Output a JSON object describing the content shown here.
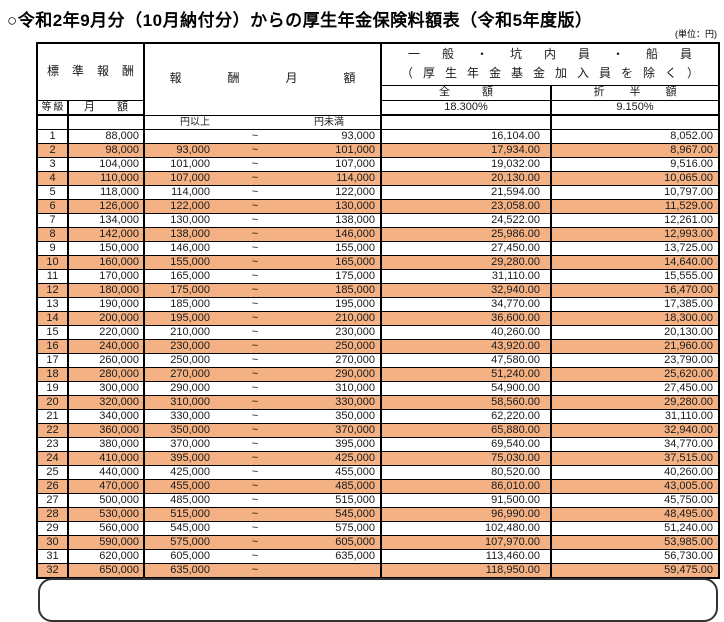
{
  "title": "○令和2年9月分（10月納付分）からの厚生年金保険料額表（令和5年度版）",
  "unit_note": "(単位：円)",
  "colors": {
    "highlight": "#F4B183",
    "border": "#000000"
  },
  "table": {
    "headers": {
      "standard_remuneration": "標準報酬",
      "grade": "等級",
      "monthly_amount": "月額",
      "remuneration_monthly": "報酬月額",
      "general_line1": "一般・坑内員・船員",
      "general_line2": "（厚生年金基金加入員を除く）",
      "full_amount": "全額",
      "half_amount": "折半額",
      "full_rate": "18.300%",
      "half_rate": "9.150%",
      "range_from": "円以上",
      "range_to": "円未満"
    },
    "range_separator": "~",
    "rows": [
      {
        "grade": "1",
        "monthly": "88,000",
        "lower": "",
        "upper": "93,000",
        "full": "16,104.00",
        "half": "8,052.00"
      },
      {
        "grade": "2",
        "monthly": "98,000",
        "lower": "93,000",
        "upper": "101,000",
        "full": "17,934.00",
        "half": "8,967.00"
      },
      {
        "grade": "3",
        "monthly": "104,000",
        "lower": "101,000",
        "upper": "107,000",
        "full": "19,032.00",
        "half": "9,516.00"
      },
      {
        "grade": "4",
        "monthly": "110,000",
        "lower": "107,000",
        "upper": "114,000",
        "full": "20,130.00",
        "half": "10,065.00"
      },
      {
        "grade": "5",
        "monthly": "118,000",
        "lower": "114,000",
        "upper": "122,000",
        "full": "21,594.00",
        "half": "10,797.00"
      },
      {
        "grade": "6",
        "monthly": "126,000",
        "lower": "122,000",
        "upper": "130,000",
        "full": "23,058.00",
        "half": "11,529.00"
      },
      {
        "grade": "7",
        "monthly": "134,000",
        "lower": "130,000",
        "upper": "138,000",
        "full": "24,522.00",
        "half": "12,261.00"
      },
      {
        "grade": "8",
        "monthly": "142,000",
        "lower": "138,000",
        "upper": "146,000",
        "full": "25,986.00",
        "half": "12,993.00"
      },
      {
        "grade": "9",
        "monthly": "150,000",
        "lower": "146,000",
        "upper": "155,000",
        "full": "27,450.00",
        "half": "13,725.00"
      },
      {
        "grade": "10",
        "monthly": "160,000",
        "lower": "155,000",
        "upper": "165,000",
        "full": "29,280.00",
        "half": "14,640.00"
      },
      {
        "grade": "11",
        "monthly": "170,000",
        "lower": "165,000",
        "upper": "175,000",
        "full": "31,110.00",
        "half": "15,555.00"
      },
      {
        "grade": "12",
        "monthly": "180,000",
        "lower": "175,000",
        "upper": "185,000",
        "full": "32,940.00",
        "half": "16,470.00"
      },
      {
        "grade": "13",
        "monthly": "190,000",
        "lower": "185,000",
        "upper": "195,000",
        "full": "34,770.00",
        "half": "17,385.00"
      },
      {
        "grade": "14",
        "monthly": "200,000",
        "lower": "195,000",
        "upper": "210,000",
        "full": "36,600.00",
        "half": "18,300.00"
      },
      {
        "grade": "15",
        "monthly": "220,000",
        "lower": "210,000",
        "upper": "230,000",
        "full": "40,260.00",
        "half": "20,130.00"
      },
      {
        "grade": "16",
        "monthly": "240,000",
        "lower": "230,000",
        "upper": "250,000",
        "full": "43,920.00",
        "half": "21,960.00"
      },
      {
        "grade": "17",
        "monthly": "260,000",
        "lower": "250,000",
        "upper": "270,000",
        "full": "47,580.00",
        "half": "23,790.00"
      },
      {
        "grade": "18",
        "monthly": "280,000",
        "lower": "270,000",
        "upper": "290,000",
        "full": "51,240.00",
        "half": "25,620.00"
      },
      {
        "grade": "19",
        "monthly": "300,000",
        "lower": "290,000",
        "upper": "310,000",
        "full": "54,900.00",
        "half": "27,450.00"
      },
      {
        "grade": "20",
        "monthly": "320,000",
        "lower": "310,000",
        "upper": "330,000",
        "full": "58,560.00",
        "half": "29,280.00"
      },
      {
        "grade": "21",
        "monthly": "340,000",
        "lower": "330,000",
        "upper": "350,000",
        "full": "62,220.00",
        "half": "31,110.00"
      },
      {
        "grade": "22",
        "monthly": "360,000",
        "lower": "350,000",
        "upper": "370,000",
        "full": "65,880.00",
        "half": "32,940.00"
      },
      {
        "grade": "23",
        "monthly": "380,000",
        "lower": "370,000",
        "upper": "395,000",
        "full": "69,540.00",
        "half": "34,770.00"
      },
      {
        "grade": "24",
        "monthly": "410,000",
        "lower": "395,000",
        "upper": "425,000",
        "full": "75,030.00",
        "half": "37,515.00"
      },
      {
        "grade": "25",
        "monthly": "440,000",
        "lower": "425,000",
        "upper": "455,000",
        "full": "80,520.00",
        "half": "40,260.00"
      },
      {
        "grade": "26",
        "monthly": "470,000",
        "lower": "455,000",
        "upper": "485,000",
        "full": "86,010.00",
        "half": "43,005.00"
      },
      {
        "grade": "27",
        "monthly": "500,000",
        "lower": "485,000",
        "upper": "515,000",
        "full": "91,500.00",
        "half": "45,750.00"
      },
      {
        "grade": "28",
        "monthly": "530,000",
        "lower": "515,000",
        "upper": "545,000",
        "full": "96,990.00",
        "half": "48,495.00"
      },
      {
        "grade": "29",
        "monthly": "560,000",
        "lower": "545,000",
        "upper": "575,000",
        "full": "102,480.00",
        "half": "51,240.00"
      },
      {
        "grade": "30",
        "monthly": "590,000",
        "lower": "575,000",
        "upper": "605,000",
        "full": "107,970.00",
        "half": "53,985.00"
      },
      {
        "grade": "31",
        "monthly": "620,000",
        "lower": "605,000",
        "upper": "635,000",
        "full": "113,460.00",
        "half": "56,730.00"
      },
      {
        "grade": "32",
        "monthly": "650,000",
        "lower": "635,000",
        "upper": "",
        "full": "118,950.00",
        "half": "59,475.00"
      }
    ]
  }
}
